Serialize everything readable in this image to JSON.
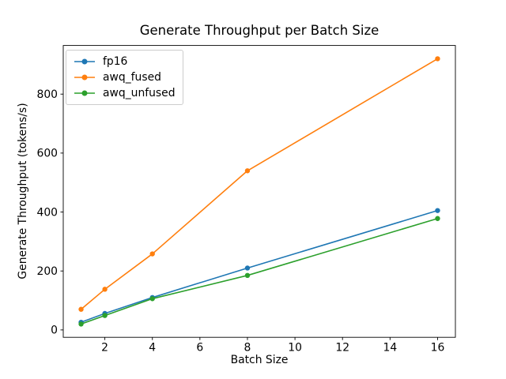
{
  "chart_data": {
    "type": "line",
    "title": "Generate Throughput per Batch Size",
    "xlabel": "Batch Size",
    "ylabel": "Generate Throughput (tokens/s)",
    "x": [
      1,
      2,
      4,
      8,
      16
    ],
    "series": [
      {
        "name": "fp16",
        "color": "#1f77b4",
        "values": [
          26,
          56,
          110,
          210,
          405
        ]
      },
      {
        "name": "awq_fused",
        "color": "#ff7f0e",
        "values": [
          70,
          138,
          258,
          540,
          920
        ]
      },
      {
        "name": "awq_unfused",
        "color": "#2ca02c",
        "values": [
          20,
          49,
          106,
          185,
          378
        ]
      }
    ],
    "xlim": [
      0.25,
      16.75
    ],
    "ylim": [
      -25,
      965
    ],
    "xticks": [
      2,
      4,
      6,
      8,
      10,
      12,
      14,
      16
    ],
    "yticks": [
      0,
      200,
      400,
      600,
      800
    ],
    "grid": false,
    "legend_position": "upper left",
    "marker": "o",
    "colors": {
      "background": "#ffffff",
      "text": "#000000",
      "axis": "#000000",
      "legend_border": "#cccccc"
    }
  }
}
